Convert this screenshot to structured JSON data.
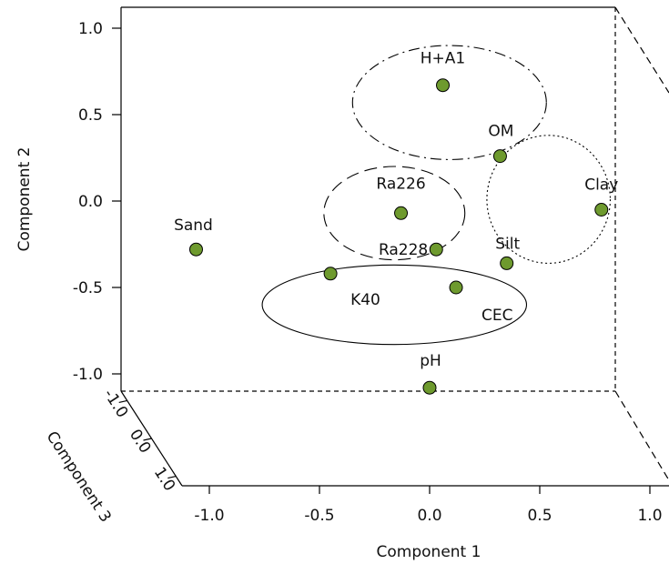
{
  "chart_data": {
    "type": "scatter",
    "xlabel": "Component 1",
    "ylabel": "Component 2",
    "zlabel": "Component 3",
    "xlim": [
      -1.1,
      1.1
    ],
    "ylim": [
      -1.1,
      1.1
    ],
    "x_ticks": [
      {
        "value": -1.0,
        "label": "-1.0"
      },
      {
        "value": -0.5,
        "label": "-0.5"
      },
      {
        "value": 0.0,
        "label": "0.0"
      },
      {
        "value": 0.5,
        "label": "0.5"
      },
      {
        "value": 1.0,
        "label": "1.0"
      }
    ],
    "y_ticks": [
      {
        "value": 1.0,
        "label": "1.0"
      },
      {
        "value": 0.5,
        "label": "0.5"
      },
      {
        "value": 0.0,
        "label": "0.0"
      },
      {
        "value": -0.5,
        "label": "-0.5"
      },
      {
        "value": -1.0,
        "label": "-1.0"
      }
    ],
    "z_ticks": [
      {
        "value": -1.0,
        "label": "-1.0"
      },
      {
        "value": 0.0,
        "label": "0.0"
      },
      {
        "value": 1.0,
        "label": "1.0"
      }
    ],
    "point_color": "#6e9a2e",
    "points": [
      {
        "label": "H+A1",
        "x": 0.06,
        "y": 0.67
      },
      {
        "label": "OM",
        "x": 0.32,
        "y": 0.26
      },
      {
        "label": "Clay",
        "x": 0.78,
        "y": -0.05
      },
      {
        "label": "Ra226",
        "x": -0.13,
        "y": -0.07
      },
      {
        "label": "Sand",
        "x": -1.06,
        "y": -0.28
      },
      {
        "label": "Ra228",
        "x": 0.03,
        "y": -0.28
      },
      {
        "label": "Silt",
        "x": 0.35,
        "y": -0.36
      },
      {
        "label": "K40",
        "x": -0.45,
        "y": -0.42
      },
      {
        "label": "CEC",
        "x": 0.12,
        "y": -0.5
      },
      {
        "label": "pH",
        "x": 0.0,
        "y": -1.08
      }
    ],
    "groups": [
      {
        "members": [
          "H+A1",
          "OM"
        ],
        "cx": 0.09,
        "cy": 0.57,
        "rx": 0.44,
        "ry": 0.33,
        "line_style": "dashdot"
      },
      {
        "members": [
          "OM",
          "Clay",
          "Silt"
        ],
        "cx": 0.54,
        "cy": 0.01,
        "rx": 0.28,
        "ry": 0.37,
        "line_style": "dotted"
      },
      {
        "members": [
          "Ra226",
          "Ra228"
        ],
        "cx": -0.16,
        "cy": -0.07,
        "rx": 0.32,
        "ry": 0.27,
        "line_style": "dashed"
      },
      {
        "members": [
          "K40",
          "CEC"
        ],
        "cx": -0.16,
        "cy": -0.6,
        "rx": 0.6,
        "ry": 0.23,
        "line_style": "solid"
      }
    ]
  }
}
